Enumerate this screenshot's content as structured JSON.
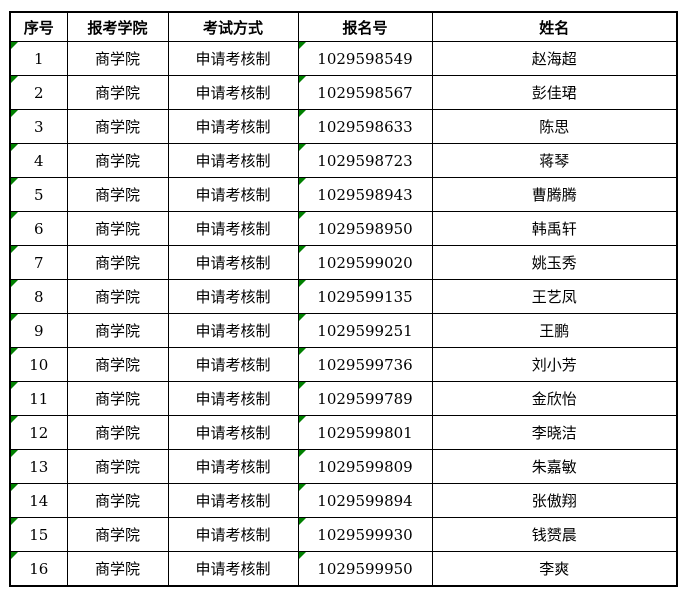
{
  "colors": {
    "background": "#ffffff",
    "grid_border": "#000000",
    "text": "#000000",
    "number_as_text_indicator": "#008000"
  },
  "table": {
    "headers": [
      "序号",
      "报考学院",
      "考试方式",
      "报名号",
      "姓名"
    ],
    "indicator_columns": [
      0,
      3
    ],
    "rows": [
      [
        "1",
        "商学院",
        "申请考核制",
        "1029598549",
        "赵海超"
      ],
      [
        "2",
        "商学院",
        "申请考核制",
        "1029598567",
        "彭佳珺"
      ],
      [
        "3",
        "商学院",
        "申请考核制",
        "1029598633",
        "陈思"
      ],
      [
        "4",
        "商学院",
        "申请考核制",
        "1029598723",
        "蒋琴"
      ],
      [
        "5",
        "商学院",
        "申请考核制",
        "1029598943",
        "曹腾腾"
      ],
      [
        "6",
        "商学院",
        "申请考核制",
        "1029598950",
        "韩禹轩"
      ],
      [
        "7",
        "商学院",
        "申请考核制",
        "1029599020",
        "姚玉秀"
      ],
      [
        "8",
        "商学院",
        "申请考核制",
        "1029599135",
        "王艺凤"
      ],
      [
        "9",
        "商学院",
        "申请考核制",
        "1029599251",
        "王鹏"
      ],
      [
        "10",
        "商学院",
        "申请考核制",
        "1029599736",
        "刘小芳"
      ],
      [
        "11",
        "商学院",
        "申请考核制",
        "1029599789",
        "金欣怡"
      ],
      [
        "12",
        "商学院",
        "申请考核制",
        "1029599801",
        "李晓洁"
      ],
      [
        "13",
        "商学院",
        "申请考核制",
        "1029599809",
        "朱嘉敏"
      ],
      [
        "14",
        "商学院",
        "申请考核制",
        "1029599894",
        "张傲翔"
      ],
      [
        "15",
        "商学院",
        "申请考核制",
        "1029599930",
        "钱赟晨"
      ],
      [
        "16",
        "商学院",
        "申请考核制",
        "1029599950",
        "李爽"
      ]
    ]
  }
}
